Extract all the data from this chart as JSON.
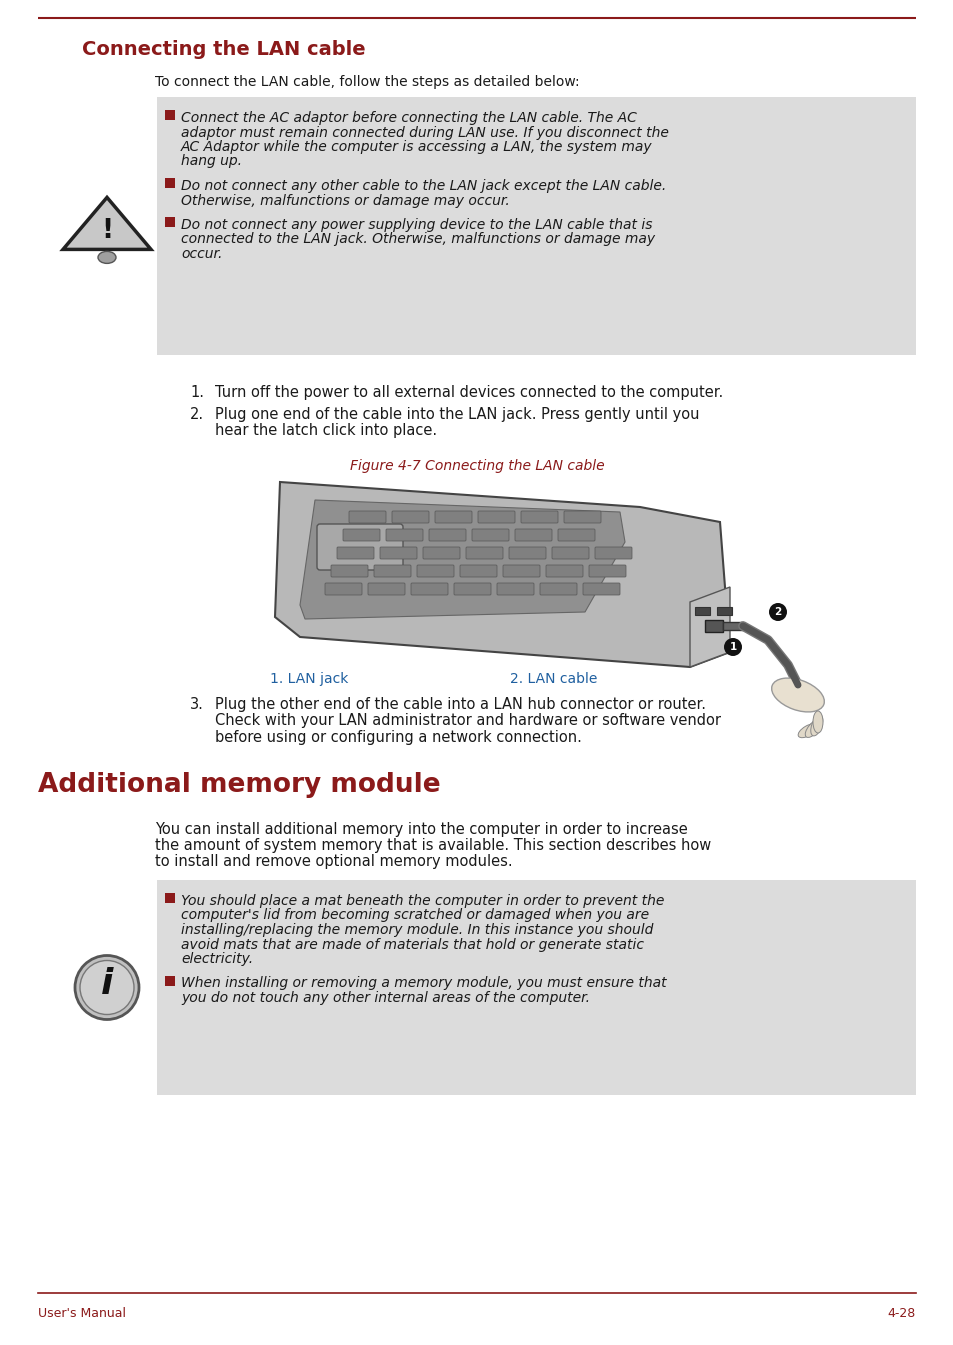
{
  "bg_color": "#ffffff",
  "line_color": "#8B1A1A",
  "title1": "Connecting the LAN cable",
  "title1_color": "#8B1A1A",
  "title2": "Additional memory module",
  "title2_color": "#8B1A1A",
  "footer_left": "User's Manual",
  "footer_right": "4-28",
  "footer_color": "#8B1A1A",
  "warn_bg": "#DCDCDC",
  "info_bg": "#DCDCDC",
  "bullet_color": "#8B1A1A",
  "caption_color": "#8B1A1A",
  "label_color": "#2060A0",
  "body_color": "#1a1a1a",
  "intro1": "To connect the LAN cable, follow the steps as detailed below:",
  "warn_lines": [
    "Connect the AC adaptor before connecting the LAN cable. The AC",
    "adaptor must remain connected during LAN use. If you disconnect the",
    "AC Adaptor while the computer is accessing a LAN, the system may",
    "hang up."
  ],
  "warn2_lines": [
    "Do not connect any other cable to the LAN jack except the LAN cable.",
    "Otherwise, malfunctions or damage may occur."
  ],
  "warn3_lines": [
    "Do not connect any power supplying device to the LAN cable that is",
    "connected to the LAN jack. Otherwise, malfunctions or damage may",
    "occur."
  ],
  "step1": "Turn off the power to all external devices connected to the computer.",
  "step2_lines": [
    "Plug one end of the cable into the LAN jack. Press gently until you",
    "hear the latch click into place."
  ],
  "step3_lines": [
    "Plug the other end of the cable into a LAN hub connector or router.",
    "Check with your LAN administrator and hardware or software vendor",
    "before using or configuring a network connection."
  ],
  "fig_caption": "Figure 4-7 Connecting the LAN cable",
  "label1": "1. LAN jack",
  "label2": "2. LAN cable",
  "intro2_lines": [
    "You can install additional memory into the computer in order to increase",
    "the amount of system memory that is available. This section describes how",
    "to install and remove optional memory modules."
  ],
  "info1_lines": [
    "You should place a mat beneath the computer in order to prevent the",
    "computer's lid from becoming scratched or damaged when you are",
    "installing/replacing the memory module. In this instance you should",
    "avoid mats that are made of materials that hold or generate static",
    "electricity."
  ],
  "info2_lines": [
    "When installing or removing a memory module, you must ensure that",
    "you do not touch any other internal areas of the computer."
  ]
}
